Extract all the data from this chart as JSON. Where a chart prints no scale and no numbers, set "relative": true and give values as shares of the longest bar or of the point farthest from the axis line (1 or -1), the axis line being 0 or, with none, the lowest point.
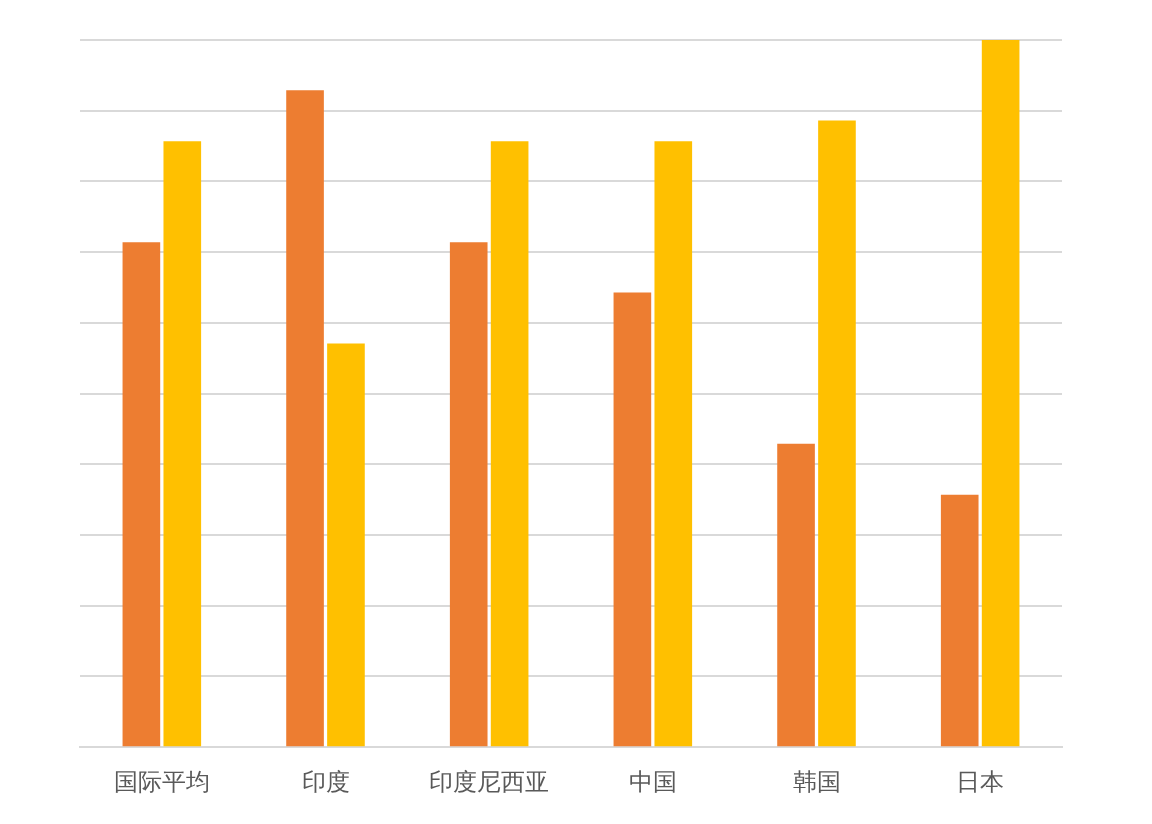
{
  "chart_data": {
    "type": "bar",
    "relative": true,
    "grid": "y",
    "categories": [
      "国际平均",
      "印度",
      "印度尼西亚",
      "中国",
      "韩国",
      "日本"
    ],
    "series": [
      {
        "color": "#ed7d31",
        "values": [
          0.714,
          0.929,
          0.714,
          0.643,
          0.429,
          0.357
        ]
      },
      {
        "color": "#ffc000",
        "values": [
          0.857,
          0.571,
          0.857,
          0.857,
          0.886,
          1
        ]
      }
    ]
  }
}
